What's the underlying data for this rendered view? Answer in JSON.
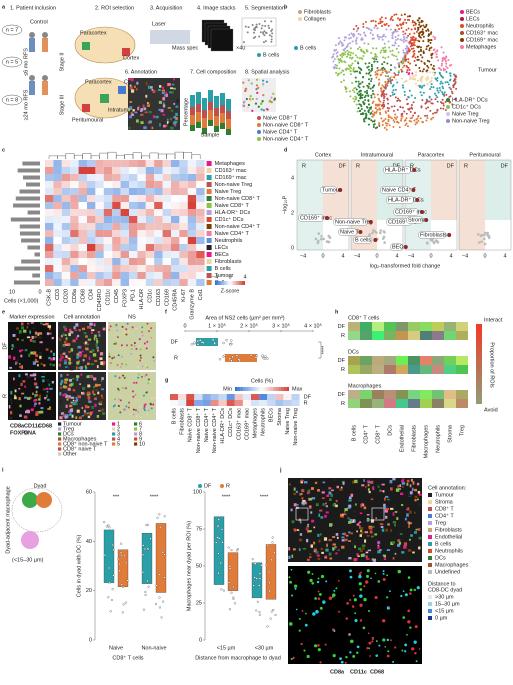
{
  "panel_labels": [
    "a",
    "b",
    "c",
    "d",
    "e",
    "f",
    "g",
    "h",
    "i",
    "j"
  ],
  "a": {
    "steps": [
      "1. Patient inclusion",
      "2. ROI selection",
      "3. Acquisition",
      "4. Image stacks",
      "5. Segmentation",
      "6. Annotation",
      "7. Cell composition",
      "8. Spatial analysis"
    ],
    "cohorts": [
      "n = 7",
      "n = 5",
      "n = 8"
    ],
    "groups": [
      "Control",
      "≤6 mo RFS",
      "≥24 mo RFS",
      "Stage II",
      "Stage III"
    ],
    "regions": [
      "Paracortex",
      "Cortex",
      "Paracortex",
      "Cortex",
      "Intratumoural",
      "Peritumoural"
    ],
    "acq": [
      "Laser",
      "Mass spec",
      "×40"
    ],
    "axes": [
      "Percentage",
      "Sample"
    ],
    "seg_legend": [
      "B cells",
      "Naive CD8⁺ T",
      "Non-naive CD8⁺ T"
    ],
    "spatial_legend": [
      "Naive CD4⁺ T",
      "Non-naive CD4⁺ T"
    ]
  },
  "b": {
    "legend_left": [
      "Fibroblasts",
      "Collagen"
    ],
    "legend_right": [
      "BECs",
      "LECs",
      "Neutrophils",
      "CD163⁺ mac",
      "CD169⁺ mac",
      "Metaphages"
    ],
    "tumour": "Tumour",
    "bcells": "B cells",
    "legend_bottom": [
      "HLA-DR⁺ DCs",
      "CD1c⁺ DCs",
      "Naive Treg",
      "Non-naive Treg"
    ]
  },
  "c": {
    "rows": [
      "Metaphages",
      "CD163⁺ mac",
      "CD169⁺ mac",
      "Non-naive Treg",
      "Naive Treg",
      "Non-naive CD8⁺ T",
      "Naive CD8⁺ T",
      "HLA-DR⁺ DCs",
      "CD1c⁺ DCs",
      "Non-naive CD4⁺ T",
      "Naive CD4⁺ T",
      "Neutrophils",
      "LECs",
      "BECs",
      "Fibroblasts",
      "B cells",
      "Tumour",
      "Collagen"
    ],
    "columns": [
      "CSK-B",
      "CD3",
      "CD20",
      "CD8a",
      "CD68",
      "CD4",
      "CD45RO",
      "CD11c",
      "CD45",
      "FOXP3",
      "PD-1",
      "HLA-DR",
      "CD1c",
      "CD163",
      "CD169",
      "CD45RA",
      "Ki-67",
      "Granzyme B",
      "Col1"
    ],
    "cells_axis": "Cells (×1,000)",
    "cells_ticks": [
      "10",
      "0"
    ],
    "scale_ticks": [
      "−4",
      "0",
      "4"
    ],
    "scale_label": "Z-score"
  },
  "d": {
    "facets": [
      "Cortex",
      "Intratumoural",
      "Paracortex",
      "Peritumoural"
    ],
    "ylabel": "−log₁₀P",
    "xlabel": "log₂-transformed fold change",
    "xticks": [
      "−4",
      "0",
      "4"
    ],
    "yticks": [
      "0",
      "2",
      "4"
    ],
    "sides": [
      "R",
      "DF"
    ],
    "points": [
      "CD169⁺ mac",
      "Tumour",
      "Non-naive Treg",
      "Naive T",
      "B cells",
      "HLA-DR⁺ DCs",
      "Naive CD4⁺ T",
      "HLA-DR⁺ DCs",
      "CD169⁺ mac",
      "CD169⁺ mac",
      "Stroma",
      "Fibroblasts",
      "BECs"
    ]
  },
  "e": {
    "headers": [
      "Marker expression",
      "Cell annotation",
      "NS"
    ],
    "rows": [
      "DF",
      "R"
    ],
    "markers": [
      "CD8a",
      "CD11c",
      "CD68",
      "FOXP3",
      "DNA"
    ],
    "cell_legend": [
      "Tumour",
      "Treg",
      "DCs",
      "Macrophages",
      "CD8⁺ non-naive T",
      "CD8⁺ naive T",
      "Other"
    ],
    "ns_legend": [
      "1",
      "2",
      "3",
      "4",
      "5",
      "6",
      "7",
      "8",
      "9",
      "10"
    ]
  },
  "f": {
    "title": "Area of NS2 cells (µm² per mm²)",
    "ticks": [
      "0",
      "1 × 10⁵",
      "2 × 10⁵",
      "3 × 10⁵",
      "4 × 10⁵"
    ],
    "rows": [
      "DF",
      "R"
    ],
    "sig": "****"
  },
  "g": {
    "title": "Cells (%)",
    "scale": [
      "Min",
      "Max"
    ],
    "rows": [
      "DF",
      "R"
    ],
    "columns": [
      "B cells",
      "Fibroblasts",
      "Naive CD8⁺ T",
      "Non-naive CD8⁺ T",
      "Naive CD4⁺ T",
      "Non-naive CD4⁺ T",
      "HLA-DR⁺ DCs",
      "CD1c⁺ DCs",
      "CD163⁺ mac",
      "CD169⁺ mac",
      "Metaphages",
      "Neutrophils",
      "BECs",
      "Stroma",
      "Naive Treg",
      "Non-naive Treg"
    ]
  },
  "h": {
    "titles": [
      "CD8⁺ T cells",
      "DCs",
      "Macrophages"
    ],
    "rows": [
      "DF",
      "R"
    ],
    "columns": [
      "B cells",
      "CD4⁺ T",
      "CD8⁺ T",
      "DCs",
      "Endothelial",
      "Fibroblasts",
      "Macrophages",
      "Neutrophils",
      "Stroma",
      "Treg"
    ],
    "scale": [
      "Interact",
      "Avoid"
    ],
    "scale_label": "Proportion of ROIs"
  },
  "i": {
    "dyad": "Dyad",
    "dyad_range": "(<15–30 µm)",
    "macrophage": "Dyad-adjacent macrophage",
    "legend": [
      "DF",
      "R"
    ],
    "chart1": {
      "ylabel": "Cells in dyad with DC (%)",
      "yticks": [
        "0",
        "20",
        "40",
        "60"
      ],
      "groups": [
        "Naive",
        "Non-naive"
      ],
      "xlabel": "CD8⁺ T cells",
      "sig": [
        "***",
        "****"
      ]
    },
    "chart2": {
      "ylabel": "Macrophages near dyad per ROI (%)",
      "yticks": [
        "0",
        "25",
        "50",
        "75",
        "100"
      ],
      "groups": [
        "<15 µm",
        "<30 µm"
      ],
      "xlabel": "Distance from macrophage to dyad",
      "sig": [
        "****",
        "****"
      ]
    }
  },
  "j": {
    "legend_title": "Cell annotation:",
    "legend": [
      "Tumour",
      "Stroma",
      "CD8⁺ T",
      "CD4⁺ T",
      "Treg",
      "Fibroblasts",
      "Endothelial",
      "B cells",
      "Neutrophils",
      "DCs",
      "Macrophages",
      "Undefined"
    ],
    "distance_title": [
      "Distance to",
      "CD8-DC dyad"
    ],
    "distance": [
      ">30 µm",
      "15–30 µm",
      "<15 µm",
      "0 µm"
    ],
    "markers": [
      "CD8a",
      "CD11c",
      "CD68"
    ]
  }
}
